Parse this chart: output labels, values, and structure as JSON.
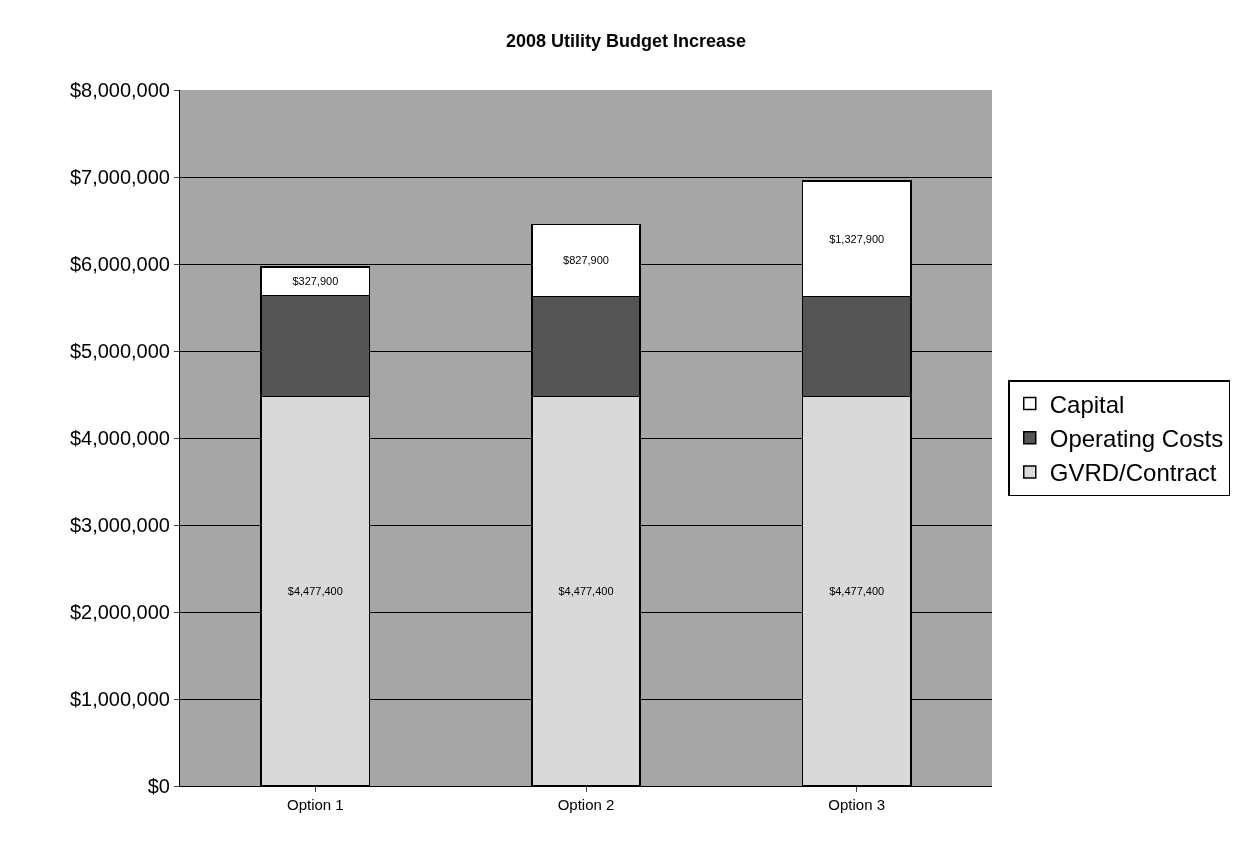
{
  "chart_data": {
    "type": "bar",
    "stacked": true,
    "title": "2008 Utility Budget Increase",
    "categories": [
      "Option 1",
      "Option 2",
      "Option 3"
    ],
    "series": [
      {
        "name": "GVRD/Contract",
        "color": "#d9d9d9",
        "values": [
          4477400,
          4477400,
          4477400
        ],
        "value_labels": [
          "$4,477,400",
          "$4,477,400",
          "$4,477,400"
        ]
      },
      {
        "name": "Operating Costs",
        "color": "#555555",
        "values": [
          1160000,
          1150000,
          1150000
        ]
      },
      {
        "name": "Capital",
        "color": "#ffffff",
        "values": [
          327900,
          827900,
          1327900
        ],
        "value_labels": [
          "$327,900",
          "$827,900",
          "$1,327,900"
        ]
      }
    ],
    "ylim": [
      0,
      8000000
    ],
    "yticks": [
      {
        "value": 0,
        "label": "$0"
      },
      {
        "value": 1000000,
        "label": "$1,000,000"
      },
      {
        "value": 2000000,
        "label": "$2,000,000"
      },
      {
        "value": 3000000,
        "label": "$3,000,000"
      },
      {
        "value": 4000000,
        "label": "$4,000,000"
      },
      {
        "value": 5000000,
        "label": "$5,000,000"
      },
      {
        "value": 6000000,
        "label": "$6,000,000"
      },
      {
        "value": 7000000,
        "label": "$7,000,000"
      },
      {
        "value": 8000000,
        "label": "$8,000,000"
      }
    ],
    "grid": "y",
    "legend": "right"
  }
}
